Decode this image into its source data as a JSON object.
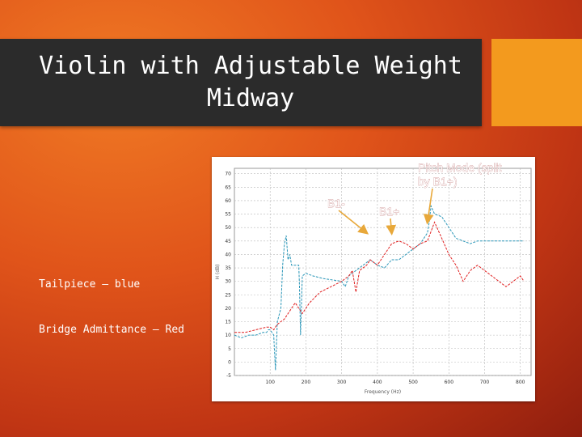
{
  "slide": {
    "title": "Violin with Adjustable Weight\nMidway",
    "legend_notes": [
      "Tailpiece – blue",
      "Bridge Admittance – Red"
    ]
  },
  "colors": {
    "background": "#e0541a",
    "banner": "#2b2b2b",
    "accent": "#f39a1e",
    "blue_series": "#2a96b8",
    "red_series": "#e02020",
    "arrow": "#e8a83a"
  },
  "chart_data": {
    "type": "line",
    "title": "",
    "xlabel": "Frequency (Hz)",
    "ylabel": "H (dB)",
    "xlim": [
      0,
      830
    ],
    "ylim": [
      -5,
      72
    ],
    "x_ticks": [
      100,
      200,
      300,
      400,
      500,
      600,
      700,
      800
    ],
    "y_ticks": [
      -5,
      0,
      5,
      10,
      15,
      20,
      25,
      30,
      35,
      40,
      45,
      50,
      55,
      60,
      65,
      70
    ],
    "grid": true,
    "series": [
      {
        "name": "Tailpiece",
        "color": "#2a96b8",
        "x": [
          0,
          20,
          40,
          60,
          80,
          90,
          95,
          100,
          110,
          115,
          120,
          130,
          135,
          140,
          145,
          150,
          155,
          160,
          170,
          180,
          182,
          185,
          190,
          200,
          220,
          250,
          300,
          310,
          320,
          340,
          360,
          380,
          400,
          420,
          440,
          460,
          480,
          500,
          520,
          540,
          545,
          550,
          560,
          580,
          600,
          620,
          640,
          660,
          680,
          700,
          720,
          740,
          760,
          780,
          800,
          810
        ],
        "y": [
          10,
          9,
          10,
          10,
          11,
          11,
          12,
          12,
          10,
          -3,
          15,
          20,
          36,
          44,
          47,
          38,
          40,
          36,
          36,
          36,
          28,
          10,
          32,
          33,
          32,
          31,
          30,
          28,
          32,
          34,
          36,
          38,
          36,
          35,
          38,
          38,
          40,
          42,
          44,
          48,
          52,
          58,
          55,
          54,
          50,
          46,
          45,
          44,
          45,
          45,
          45,
          45,
          45,
          45,
          45,
          45
        ]
      },
      {
        "name": "Bridge Admittance",
        "color": "#e02020",
        "x": [
          0,
          30,
          60,
          90,
          100,
          110,
          115,
          120,
          140,
          150,
          160,
          170,
          180,
          190,
          200,
          210,
          240,
          270,
          300,
          320,
          330,
          340,
          350,
          370,
          380,
          400,
          420,
          440,
          460,
          480,
          500,
          520,
          540,
          560,
          580,
          600,
          620,
          640,
          660,
          680,
          700,
          720,
          740,
          760,
          780,
          800,
          810
        ],
        "y": [
          11,
          11,
          12,
          13,
          13,
          12,
          13,
          14,
          16,
          18,
          20,
          22,
          20,
          18,
          20,
          22,
          26,
          28,
          30,
          32,
          34,
          26,
          34,
          36,
          38,
          36,
          40,
          44,
          45,
          44,
          42,
          44,
          45,
          52,
          46,
          40,
          36,
          30,
          34,
          36,
          34,
          32,
          30,
          28,
          30,
          32,
          30
        ]
      }
    ],
    "annotations": [
      {
        "text": "B1-",
        "target_x": 370,
        "target_y": 48
      },
      {
        "text": "B1+",
        "target_x": 440,
        "target_y": 48
      },
      {
        "text": "Pitch Mode (split\nby B1+)",
        "target_x": 540,
        "target_y": 52
      }
    ]
  }
}
